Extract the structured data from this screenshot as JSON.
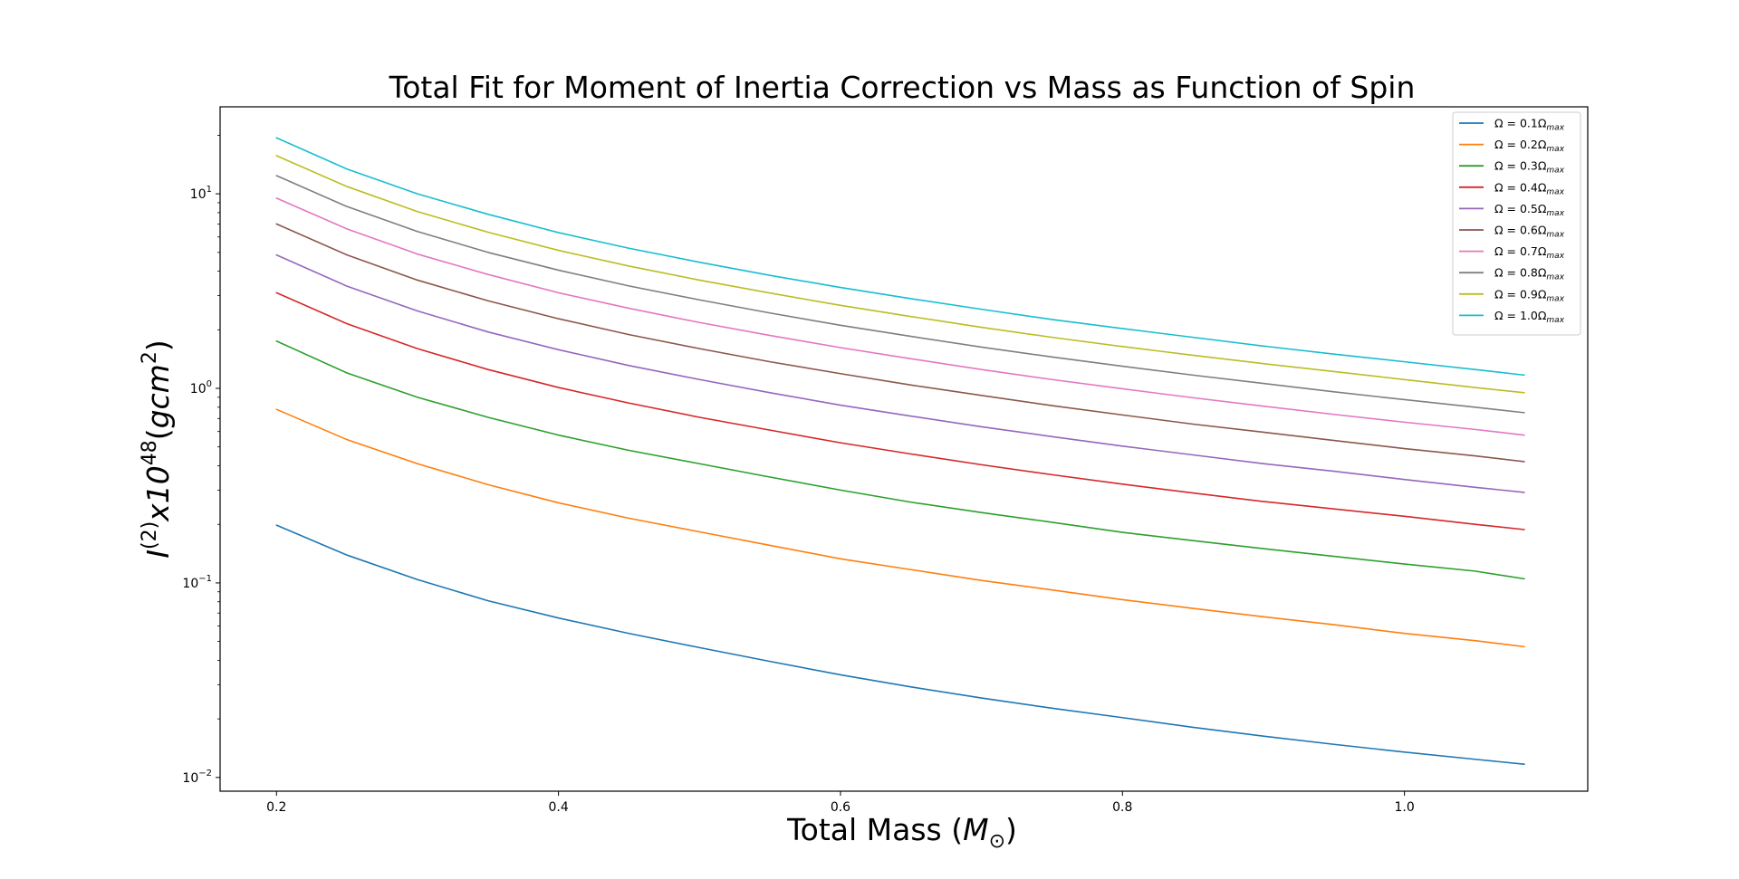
{
  "chart_data": {
    "type": "line",
    "title": "Total Fit for Moment of Inertia Correction vs Mass as Function of Spin",
    "xlabel": {
      "text": "Total Mass (",
      "math": "M",
      "sub": "⊙",
      "close": ")"
    },
    "ylabel": {
      "base": "I",
      "base_sup": "(2)",
      "mid": "x10",
      "mid_sup": "48",
      "open": "(",
      "unit": "gcm",
      "unit_sup": "2",
      "close": ")"
    },
    "x_scale": "linear",
    "y_scale": "log",
    "xlim": [
      0.16,
      1.13
    ],
    "ylim": [
      0.0085,
      28
    ],
    "x_ticks": [
      {
        "value": 0.2,
        "label": "0.2"
      },
      {
        "value": 0.4,
        "label": "0.4"
      },
      {
        "value": 0.6,
        "label": "0.6"
      },
      {
        "value": 0.8,
        "label": "0.8"
      },
      {
        "value": 1.0,
        "label": "1.0"
      }
    ],
    "y_ticks": [
      {
        "value": 0.01,
        "base": "10",
        "exp": "−2"
      },
      {
        "value": 0.1,
        "base": "10",
        "exp": "−1"
      },
      {
        "value": 1,
        "base": "10",
        "exp": "0"
      },
      {
        "value": 10,
        "base": "10",
        "exp": "1"
      }
    ],
    "grid": false,
    "legend_position": "top-right",
    "x": [
      0.2,
      0.25,
      0.3,
      0.35,
      0.4,
      0.45,
      0.5,
      0.55,
      0.6,
      0.65,
      0.7,
      0.75,
      0.8,
      0.85,
      0.9,
      0.95,
      1.0,
      1.05,
      1.085
    ],
    "series": [
      {
        "name_prefix": "Ω = 0.1Ω",
        "name_sub": "max",
        "color": "#1f77b4",
        "values": [
          0.198,
          0.139,
          0.104,
          0.081,
          0.066,
          0.055,
          0.0465,
          0.0395,
          0.0337,
          0.0292,
          0.0256,
          0.0227,
          0.0203,
          0.0181,
          0.0163,
          0.0148,
          0.0135,
          0.0124,
          0.0117
        ]
      },
      {
        "name_prefix": "Ω = 0.2Ω",
        "name_sub": "max",
        "color": "#ff7f0e",
        "values": [
          0.78,
          0.545,
          0.41,
          0.32,
          0.258,
          0.215,
          0.183,
          0.156,
          0.133,
          0.117,
          0.103,
          0.092,
          0.082,
          0.074,
          0.067,
          0.061,
          0.055,
          0.0505,
          0.047
        ]
      },
      {
        "name_prefix": "Ω = 0.3Ω",
        "name_sub": "max",
        "color": "#2ca02c",
        "values": [
          1.75,
          1.2,
          0.9,
          0.71,
          0.575,
          0.48,
          0.41,
          0.35,
          0.3,
          0.26,
          0.23,
          0.205,
          0.182,
          0.165,
          0.15,
          0.137,
          0.125,
          0.115,
          0.105
        ]
      },
      {
        "name_prefix": "Ω = 0.4Ω",
        "name_sub": "max",
        "color": "#d62728",
        "values": [
          3.1,
          2.15,
          1.6,
          1.25,
          1.01,
          0.84,
          0.71,
          0.61,
          0.525,
          0.46,
          0.405,
          0.36,
          0.322,
          0.29,
          0.262,
          0.24,
          0.22,
          0.2,
          0.188
        ]
      },
      {
        "name_prefix": "Ω = 0.5Ω",
        "name_sub": "max",
        "color": "#9467bd",
        "values": [
          4.85,
          3.35,
          2.5,
          1.95,
          1.58,
          1.31,
          1.11,
          0.95,
          0.82,
          0.72,
          0.635,
          0.565,
          0.505,
          0.455,
          0.41,
          0.375,
          0.34,
          0.31,
          0.292
        ]
      },
      {
        "name_prefix": "Ω = 0.6Ω",
        "name_sub": "max",
        "color": "#8c564b",
        "values": [
          7.0,
          4.85,
          3.6,
          2.82,
          2.28,
          1.89,
          1.6,
          1.37,
          1.19,
          1.04,
          0.92,
          0.815,
          0.73,
          0.655,
          0.595,
          0.54,
          0.49,
          0.45,
          0.42
        ]
      },
      {
        "name_prefix": "Ω = 0.7Ω",
        "name_sub": "max",
        "color": "#e377c2",
        "values": [
          9.5,
          6.6,
          4.9,
          3.85,
          3.1,
          2.58,
          2.18,
          1.87,
          1.62,
          1.42,
          1.25,
          1.11,
          0.995,
          0.895,
          0.81,
          0.735,
          0.67,
          0.615,
          0.575
        ]
      },
      {
        "name_prefix": "Ω = 0.8Ω",
        "name_sub": "max",
        "color": "#7f7f7f",
        "values": [
          12.4,
          8.6,
          6.4,
          5.0,
          4.05,
          3.36,
          2.85,
          2.44,
          2.11,
          1.85,
          1.63,
          1.45,
          1.3,
          1.17,
          1.06,
          0.96,
          0.875,
          0.8,
          0.75
        ]
      },
      {
        "name_prefix": "Ω = 0.9Ω",
        "name_sub": "max",
        "color": "#bcbd22",
        "values": [
          15.7,
          10.9,
          8.1,
          6.35,
          5.12,
          4.25,
          3.6,
          3.09,
          2.67,
          2.34,
          2.06,
          1.83,
          1.64,
          1.48,
          1.34,
          1.22,
          1.11,
          1.01,
          0.95
        ]
      },
      {
        "name_prefix": "Ω = 1.0Ω",
        "name_sub": "max",
        "color": "#17becf",
        "values": [
          19.4,
          13.4,
          10.0,
          7.85,
          6.32,
          5.25,
          4.45,
          3.81,
          3.3,
          2.89,
          2.55,
          2.26,
          2.03,
          1.83,
          1.65,
          1.5,
          1.37,
          1.25,
          1.17
        ]
      }
    ]
  }
}
